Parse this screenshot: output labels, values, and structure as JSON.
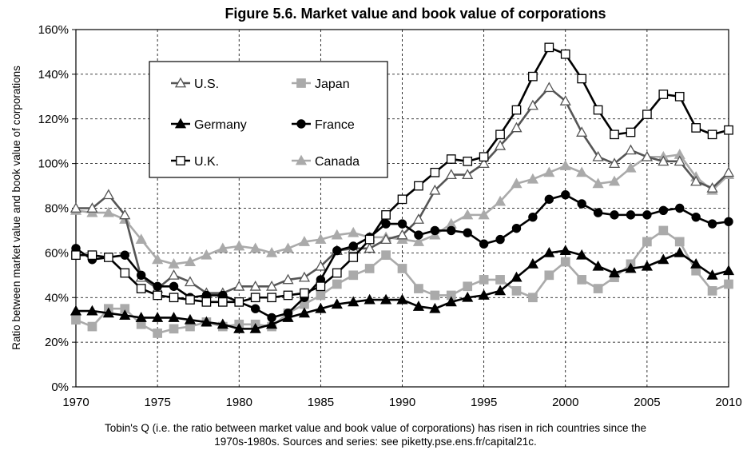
{
  "chart_data": {
    "type": "line",
    "title": "Figure 5.6. Market value and book value of corporations",
    "xlabel": "",
    "ylabel": "Ratio between market value and book value of corporations",
    "xlim": [
      1970,
      2010
    ],
    "ylim": [
      0,
      160
    ],
    "x_ticks": [
      "1970",
      "1975",
      "1980",
      "1985",
      "1990",
      "1995",
      "2000",
      "2005",
      "2010"
    ],
    "y_ticks": [
      "0%",
      "20%",
      "40%",
      "60%",
      "80%",
      "100%",
      "120%",
      "140%",
      "160%"
    ],
    "grid": "dashed",
    "legend_position": "top-left",
    "x": [
      1970,
      1971,
      1972,
      1973,
      1974,
      1975,
      1976,
      1977,
      1978,
      1979,
      1980,
      1981,
      1982,
      1983,
      1984,
      1985,
      1986,
      1987,
      1988,
      1989,
      1990,
      1991,
      1992,
      1993,
      1994,
      1995,
      1996,
      1997,
      1998,
      1999,
      2000,
      2001,
      2002,
      2003,
      2004,
      2005,
      2006,
      2007,
      2008,
      2009,
      2010
    ],
    "series": [
      {
        "name": "U.S.",
        "color": "#555555",
        "marker": "triangle-open",
        "values": [
          80,
          80,
          86,
          77,
          49,
          44,
          50,
          47,
          42,
          42,
          45,
          45,
          45,
          48,
          49,
          54,
          61,
          62,
          62,
          66,
          68,
          75,
          88,
          95,
          95,
          100,
          108,
          116,
          126,
          134,
          128,
          114,
          103,
          100,
          106,
          103,
          101,
          101,
          92,
          89,
          96
        ]
      },
      {
        "name": "Japan",
        "color": "#aaaaaa",
        "marker": "square-filled",
        "values": [
          30,
          27,
          35,
          35,
          28,
          24,
          26,
          27,
          29,
          27,
          28,
          28,
          27,
          33,
          37,
          41,
          46,
          50,
          53,
          59,
          53,
          44,
          41,
          41,
          45,
          48,
          48,
          43,
          40,
          50,
          56,
          48,
          44,
          49,
          55,
          65,
          70,
          65,
          52,
          43,
          46
        ]
      },
      {
        "name": "Germany",
        "color": "#000000",
        "marker": "triangle-filled",
        "values": [
          34,
          34,
          33,
          32,
          31,
          31,
          31,
          30,
          29,
          28,
          26,
          26,
          28,
          31,
          33,
          35,
          37,
          38,
          39,
          39,
          39,
          36,
          35,
          38,
          40,
          41,
          43,
          49,
          55,
          60,
          61,
          59,
          54,
          51,
          53,
          54,
          57,
          60,
          55,
          50,
          52
        ]
      },
      {
        "name": "France",
        "color": "#000000",
        "marker": "circle-filled",
        "values": [
          62,
          57,
          58,
          59,
          50,
          45,
          45,
          40,
          41,
          41,
          38,
          35,
          31,
          33,
          40,
          48,
          61,
          63,
          67,
          73,
          73,
          68,
          70,
          70,
          69,
          64,
          66,
          71,
          76,
          84,
          86,
          82,
          78,
          77,
          77,
          77,
          79,
          80,
          76,
          73,
          74
        ]
      },
      {
        "name": "U.K.",
        "color": "#000000",
        "marker": "square-open",
        "values": [
          59,
          59,
          58,
          51,
          44,
          41,
          40,
          39,
          38,
          38,
          38,
          40,
          40,
          41,
          42,
          45,
          51,
          58,
          66,
          77,
          84,
          90,
          96,
          102,
          101,
          103,
          113,
          124,
          139,
          152,
          149,
          138,
          124,
          113,
          114,
          122,
          131,
          130,
          116,
          113,
          115
        ]
      },
      {
        "name": "Canada",
        "color": "#aaaaaa",
        "marker": "triangle-filled",
        "values": [
          79,
          78,
          78,
          75,
          66,
          57,
          55,
          56,
          59,
          62,
          63,
          62,
          60,
          62,
          65,
          66,
          68,
          69,
          67,
          67,
          66,
          65,
          68,
          73,
          77,
          77,
          83,
          91,
          93,
          96,
          99,
          96,
          91,
          92,
          98,
          103,
          103,
          104,
          94,
          88,
          95
        ]
      }
    ]
  },
  "caption": {
    "line1": "Tobin's Q (i.e. the ratio between market value and book value of corporations) has risen in rich countries since the",
    "line2": "1970s-1980s. Sources and series: see piketty.pse.ens.fr/capital21c."
  }
}
